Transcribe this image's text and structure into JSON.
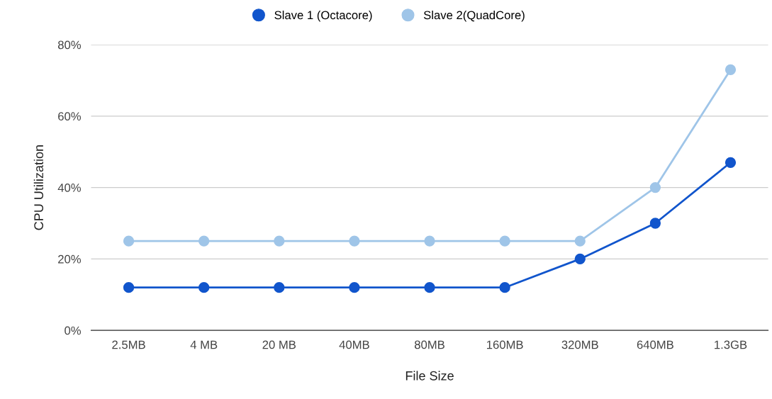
{
  "chart_data": {
    "type": "line",
    "xlabel": "File Size",
    "ylabel": "CPU Utilization",
    "categories": [
      "2.5MB",
      "4 MB",
      "20 MB",
      "40MB",
      "80MB",
      "160MB",
      "320MB",
      "640MB",
      "1.3GB"
    ],
    "series": [
      {
        "name": "Slave 1 (Octacore)",
        "color": "#1155cc",
        "values": [
          12,
          12,
          12,
          12,
          12,
          12,
          20,
          30,
          47
        ]
      },
      {
        "name": "Slave 2(QuadCore)",
        "color": "#9fc5e8",
        "values": [
          25,
          25,
          25,
          25,
          25,
          25,
          25,
          40,
          73
        ]
      }
    ],
    "ylim": [
      0,
      80
    ],
    "yticks": [
      {
        "value": 0,
        "label": "0%"
      },
      {
        "value": 20,
        "label": "20%"
      },
      {
        "value": 40,
        "label": "40%"
      },
      {
        "value": 60,
        "label": "60%"
      },
      {
        "value": 80,
        "label": "80%"
      }
    ],
    "grid": "y",
    "legend": "top",
    "marker": "circle",
    "line_style": "solid"
  }
}
